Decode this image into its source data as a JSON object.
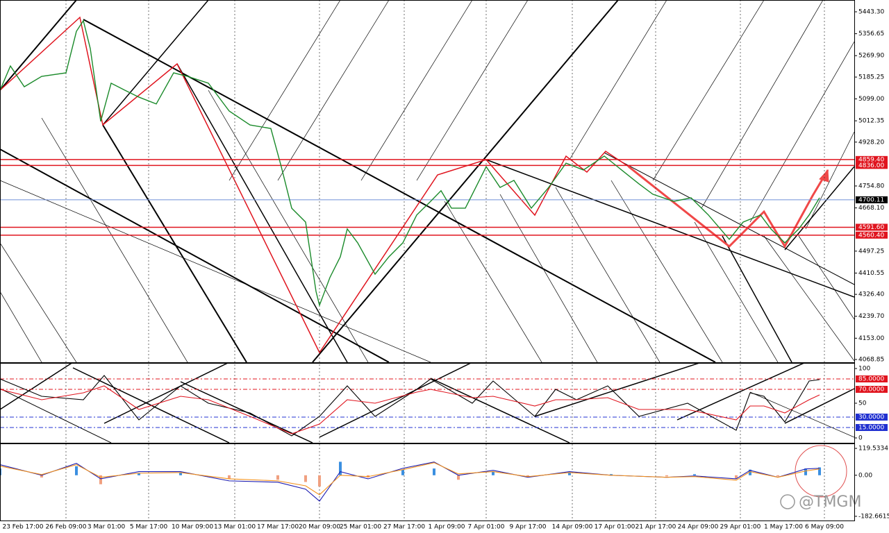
{
  "chart_data": [
    {
      "type": "line",
      "x": [
        0,
        3,
        7,
        12,
        19,
        22,
        24,
        26,
        29,
        32,
        36,
        40,
        45,
        50,
        54,
        60,
        66,
        72,
        78,
        81,
        84,
        88,
        91,
        92,
        95,
        98,
        100,
        103,
        108,
        112,
        116,
        120,
        124,
        127,
        130,
        134,
        140,
        144,
        148,
        153,
        158,
        163,
        168,
        174,
        179,
        184,
        188,
        194,
        199,
        204,
        210,
        214,
        219,
        222,
        226,
        230,
        233,
        236
      ],
      "xlim": [
        0,
        246
      ],
      "xticks": [
        {
          "value": 6.6,
          "label": "23 Feb 17:00"
        },
        {
          "value": 19,
          "label": "26 Feb 09:00"
        },
        {
          "value": 30.6,
          "label": "3 Mar 01:00"
        },
        {
          "value": 42.8,
          "label": "5 Mar 17:00"
        },
        {
          "value": 55.4,
          "label": "10 Mar 09:00"
        },
        {
          "value": 67.6,
          "label": "13 Mar 01:00"
        },
        {
          "value": 80,
          "label": "17 Mar 17:00"
        },
        {
          "value": 92,
          "label": "20 Mar 09:00"
        },
        {
          "value": 103.8,
          "label": "25 Mar 01:00"
        },
        {
          "value": 116.4,
          "label": "27 Mar 17:00"
        },
        {
          "value": 128.6,
          "label": "1 Apr 09:00"
        },
        {
          "value": 140,
          "label": "7 Apr 01:00"
        },
        {
          "value": 152,
          "label": "9 Apr 17:00"
        },
        {
          "value": 164.8,
          "label": "14 Apr 09:00"
        },
        {
          "value": 177,
          "label": "17 Apr 01:00"
        },
        {
          "value": 188.8,
          "label": "21 Apr 17:00"
        },
        {
          "value": 201,
          "label": "24 Apr 09:00"
        },
        {
          "value": 213.2,
          "label": "29 Apr 01:00"
        },
        {
          "value": 225.6,
          "label": "1 May 17:00"
        },
        {
          "value": 237.4,
          "label": "6 May 09:00"
        }
      ],
      "ylim": [
        4057.9,
        5489.9
      ],
      "yticks": [
        {
          "value": 5443.3,
          "label": "5443.30"
        },
        {
          "value": 5356.65,
          "label": "5356.65"
        },
        {
          "value": 5269.9,
          "label": "5269.90"
        },
        {
          "value": 5185.25,
          "label": "5185.25"
        },
        {
          "value": 5099,
          "label": "5099.00"
        },
        {
          "value": 5012.35,
          "label": "5012.35"
        },
        {
          "value": 4928.2,
          "label": "4928.20"
        },
        {
          "value": 4754.8,
          "label": "4754.80"
        },
        {
          "value": 4668.1,
          "label": "4668.10"
        },
        {
          "value": 4497.25,
          "label": "4497.25"
        },
        {
          "value": 4410.55,
          "label": "4410.55"
        },
        {
          "value": 4326.4,
          "label": "4326.40"
        },
        {
          "value": 4239.7,
          "label": "4239.70"
        },
        {
          "value": 4153,
          "label": "4153.00"
        },
        {
          "value": 4068.85,
          "label": "4068.85"
        }
      ],
      "levels": [
        {
          "value": 4859.4,
          "label": "4859.40",
          "color": "#e0141e"
        },
        {
          "value": 4836,
          "label": "4836.00",
          "color": "#e0141e"
        },
        {
          "value": 4700.11,
          "label": "4700.11",
          "color": "#6f8fd8"
        },
        {
          "value": 4591.6,
          "label": "4591.60",
          "color": "#e0141e"
        },
        {
          "value": 4560.4,
          "label": "4560.40",
          "color": "#e0141e"
        }
      ],
      "series": [
        {
          "name": "Price",
          "color": "#1a8a2a",
          "values": [
            5133,
            5229,
            5147,
            5188,
            5202,
            5366,
            5408,
            5298,
            5010,
            5161,
            5133,
            5106,
            5079,
            5202,
            5188,
            5161,
            5051,
            4996,
            4982,
            4831,
            4667,
            4612,
            4338,
            4283,
            4393,
            4475,
            4585,
            4530,
            4406,
            4475,
            4530,
            4640,
            4694,
            4736,
            4667,
            4667,
            4831,
            4749,
            4777,
            4667,
            4749,
            4845,
            4818,
            4873,
            4818,
            4763,
            4722,
            4694,
            4708,
            4640,
            4544,
            4612,
            4640,
            4585,
            4530,
            4585,
            4640,
            4708
          ]
        }
      ]
    },
    {
      "type": "line",
      "x": [
        0,
        12,
        24,
        30,
        40,
        52,
        60,
        72,
        84,
        92,
        100,
        108,
        120,
        124,
        136,
        142,
        154,
        160,
        166,
        175,
        184,
        198,
        212,
        216,
        220,
        226,
        233,
        236
      ],
      "ylim": [
        -7,
        108
      ],
      "yticks": [
        100,
        50,
        0
      ],
      "levels": [
        {
          "value": 85,
          "label": "85.0000",
          "color": "#e0141e"
        },
        {
          "value": 70,
          "label": "70.0000",
          "color": "#e0141e"
        },
        {
          "value": 30,
          "label": "30.0000",
          "color": "#2030d0"
        },
        {
          "value": 15,
          "label": "15.0000",
          "color": "#2030d0"
        }
      ],
      "series": [
        {
          "name": "Main",
          "color": "#000000",
          "values": [
            85,
            60,
            55,
            90,
            26,
            75,
            50,
            36,
            3,
            31,
            75,
            31,
            70,
            85,
            50,
            82,
            31,
            70,
            55,
            75,
            31,
            50,
            11,
            65,
            60,
            23,
            82,
            84
          ]
        },
        {
          "name": "Signal",
          "color": "#e0141e",
          "values": [
            70,
            55,
            65,
            75,
            41,
            60,
            55,
            31,
            6,
            20,
            55,
            50,
            66,
            70,
            58,
            60,
            46,
            55,
            55,
            58,
            41,
            41,
            26,
            46,
            46,
            36,
            55,
            62
          ]
        }
      ]
    },
    {
      "type": "line",
      "x": [
        0,
        12,
        22,
        29,
        40,
        52,
        66,
        80,
        88,
        92,
        98,
        106,
        116,
        125,
        132,
        142,
        152,
        164,
        176,
        192,
        200,
        212,
        216,
        224,
        232,
        236
      ],
      "ylim": [
        -201.4,
        141.4
      ],
      "yticks": [
        {
          "value": 119.5334,
          "label": "119.5334"
        },
        {
          "value": 0,
          "label": "0.00"
        },
        {
          "value": -182.6615,
          "label": "-182.6615"
        }
      ],
      "series": [
        {
          "name": "Histogram",
          "style": "bar",
          "color": "#3b8fe0",
          "color_down": "#f0a080",
          "values": [
            30,
            -10,
            40,
            -40,
            10,
            10,
            -15,
            -20,
            -30,
            -50,
            60,
            -10,
            25,
            30,
            -20,
            15,
            -5,
            10,
            5,
            -5,
            5,
            -15,
            25,
            -5,
            30,
            35
          ]
        },
        {
          "name": "MACD",
          "color": "#1a1ab0",
          "values": [
            47,
            0,
            53,
            -16,
            16,
            16,
            -25,
            -31,
            -62,
            -115,
            16,
            -16,
            31,
            59,
            0,
            22,
            -9,
            16,
            0,
            -9,
            -3,
            -16,
            22,
            -9,
            28,
            31
          ]
        },
        {
          "name": "Signal",
          "color": "#f39019",
          "values": [
            41,
            3,
            47,
            -9,
            9,
            12,
            -16,
            -25,
            -47,
            -87,
            0,
            -6,
            25,
            56,
            6,
            16,
            -6,
            12,
            0,
            -9,
            -6,
            -22,
            16,
            -9,
            19,
            28
          ]
        }
      ]
    }
  ],
  "watermark": "@TMGM"
}
